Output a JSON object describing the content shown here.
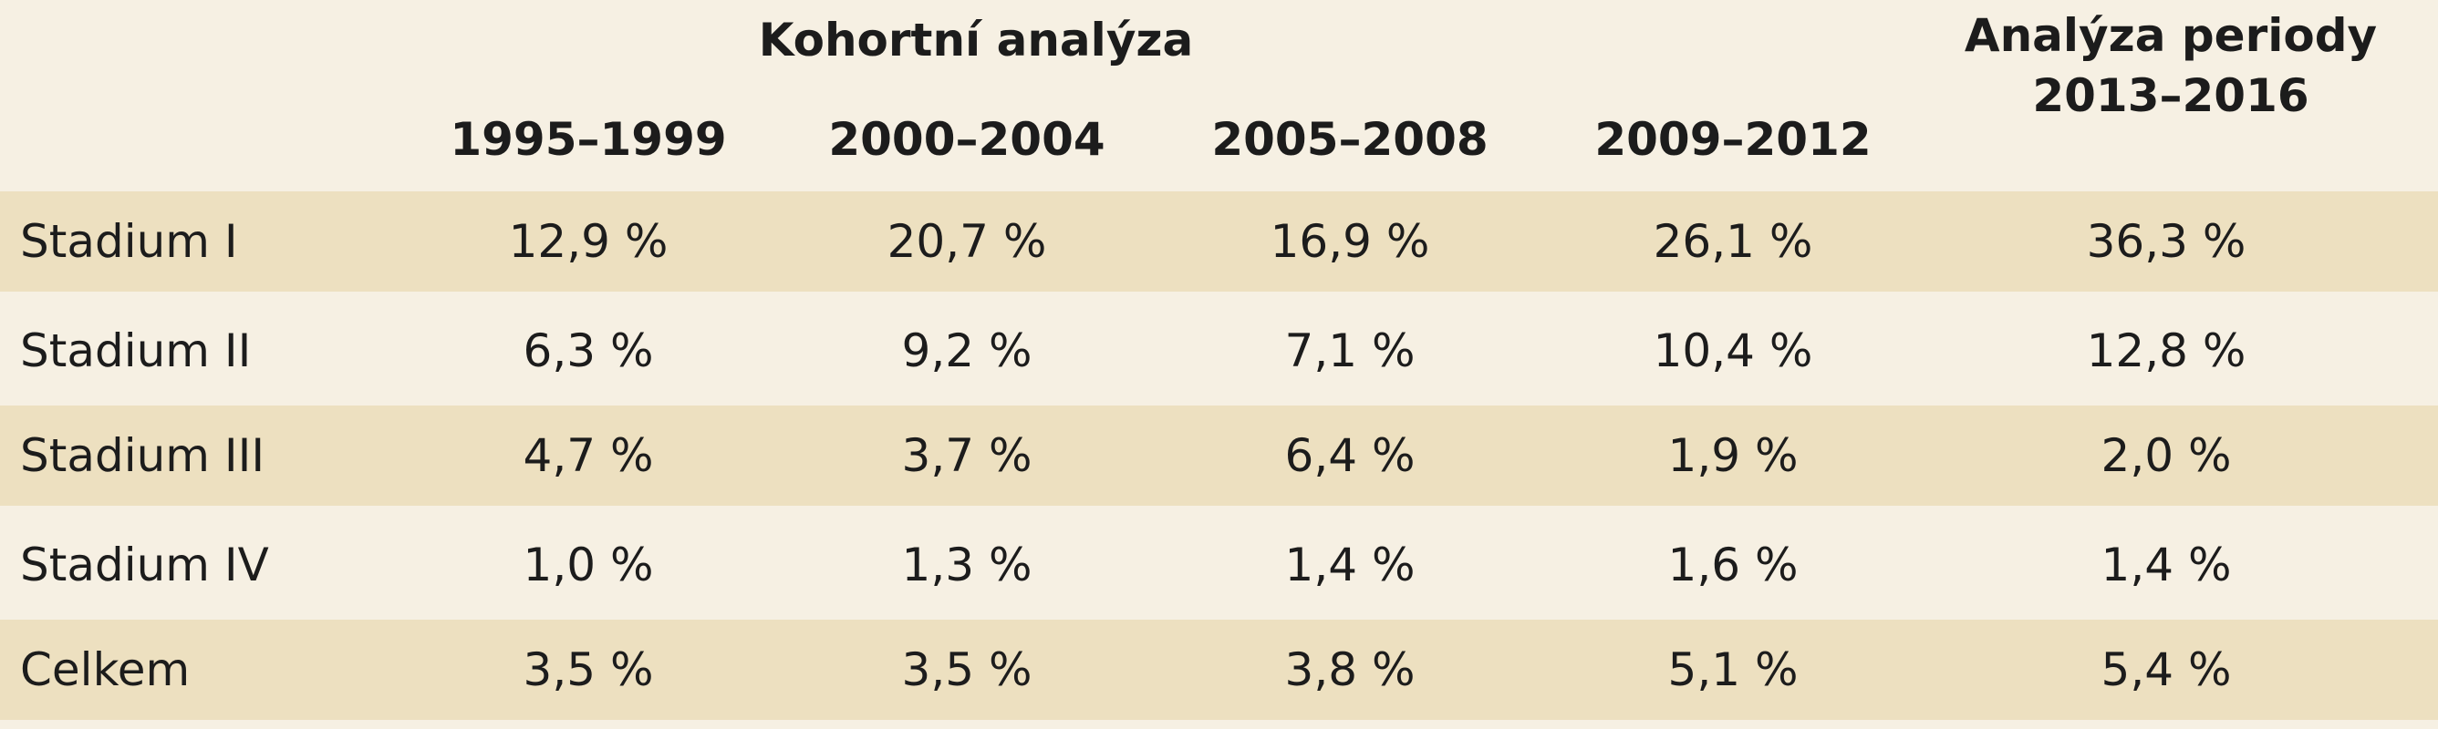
{
  "header": {
    "group_cohort": "Kohortní analýza",
    "group_period_line1": "Analýza periody",
    "group_period_line2": "2013–2016",
    "years": [
      "1995–1999",
      "2000–2004",
      "2005–2008",
      "2009–2012"
    ]
  },
  "rows": [
    {
      "label": "Stadium I",
      "values": [
        "12,9 %",
        "20,7 %",
        "16,9 %",
        "26,1 %",
        "36,3 %"
      ]
    },
    {
      "label": "Stadium II",
      "values": [
        "6,3 %",
        "9,2 %",
        "7,1 %",
        "10,4 %",
        "12,8 %"
      ]
    },
    {
      "label": "Stadium III",
      "values": [
        "4,7 %",
        "3,7 %",
        "6,4 %",
        "1,9 %",
        "2,0 %"
      ]
    },
    {
      "label": "Stadium IV",
      "values": [
        "1,0 %",
        "1,3 %",
        "1,4 %",
        "1,6 %",
        "1,4 %"
      ]
    },
    {
      "label": "Celkem",
      "values": [
        "3,5 %",
        "3,5 %",
        "3,8 %",
        "5,1 %",
        "5,4 %"
      ]
    }
  ],
  "colors": {
    "background": "#f6f0e3",
    "row_shade": "#ede0c0",
    "text": "#1c1c1c"
  }
}
